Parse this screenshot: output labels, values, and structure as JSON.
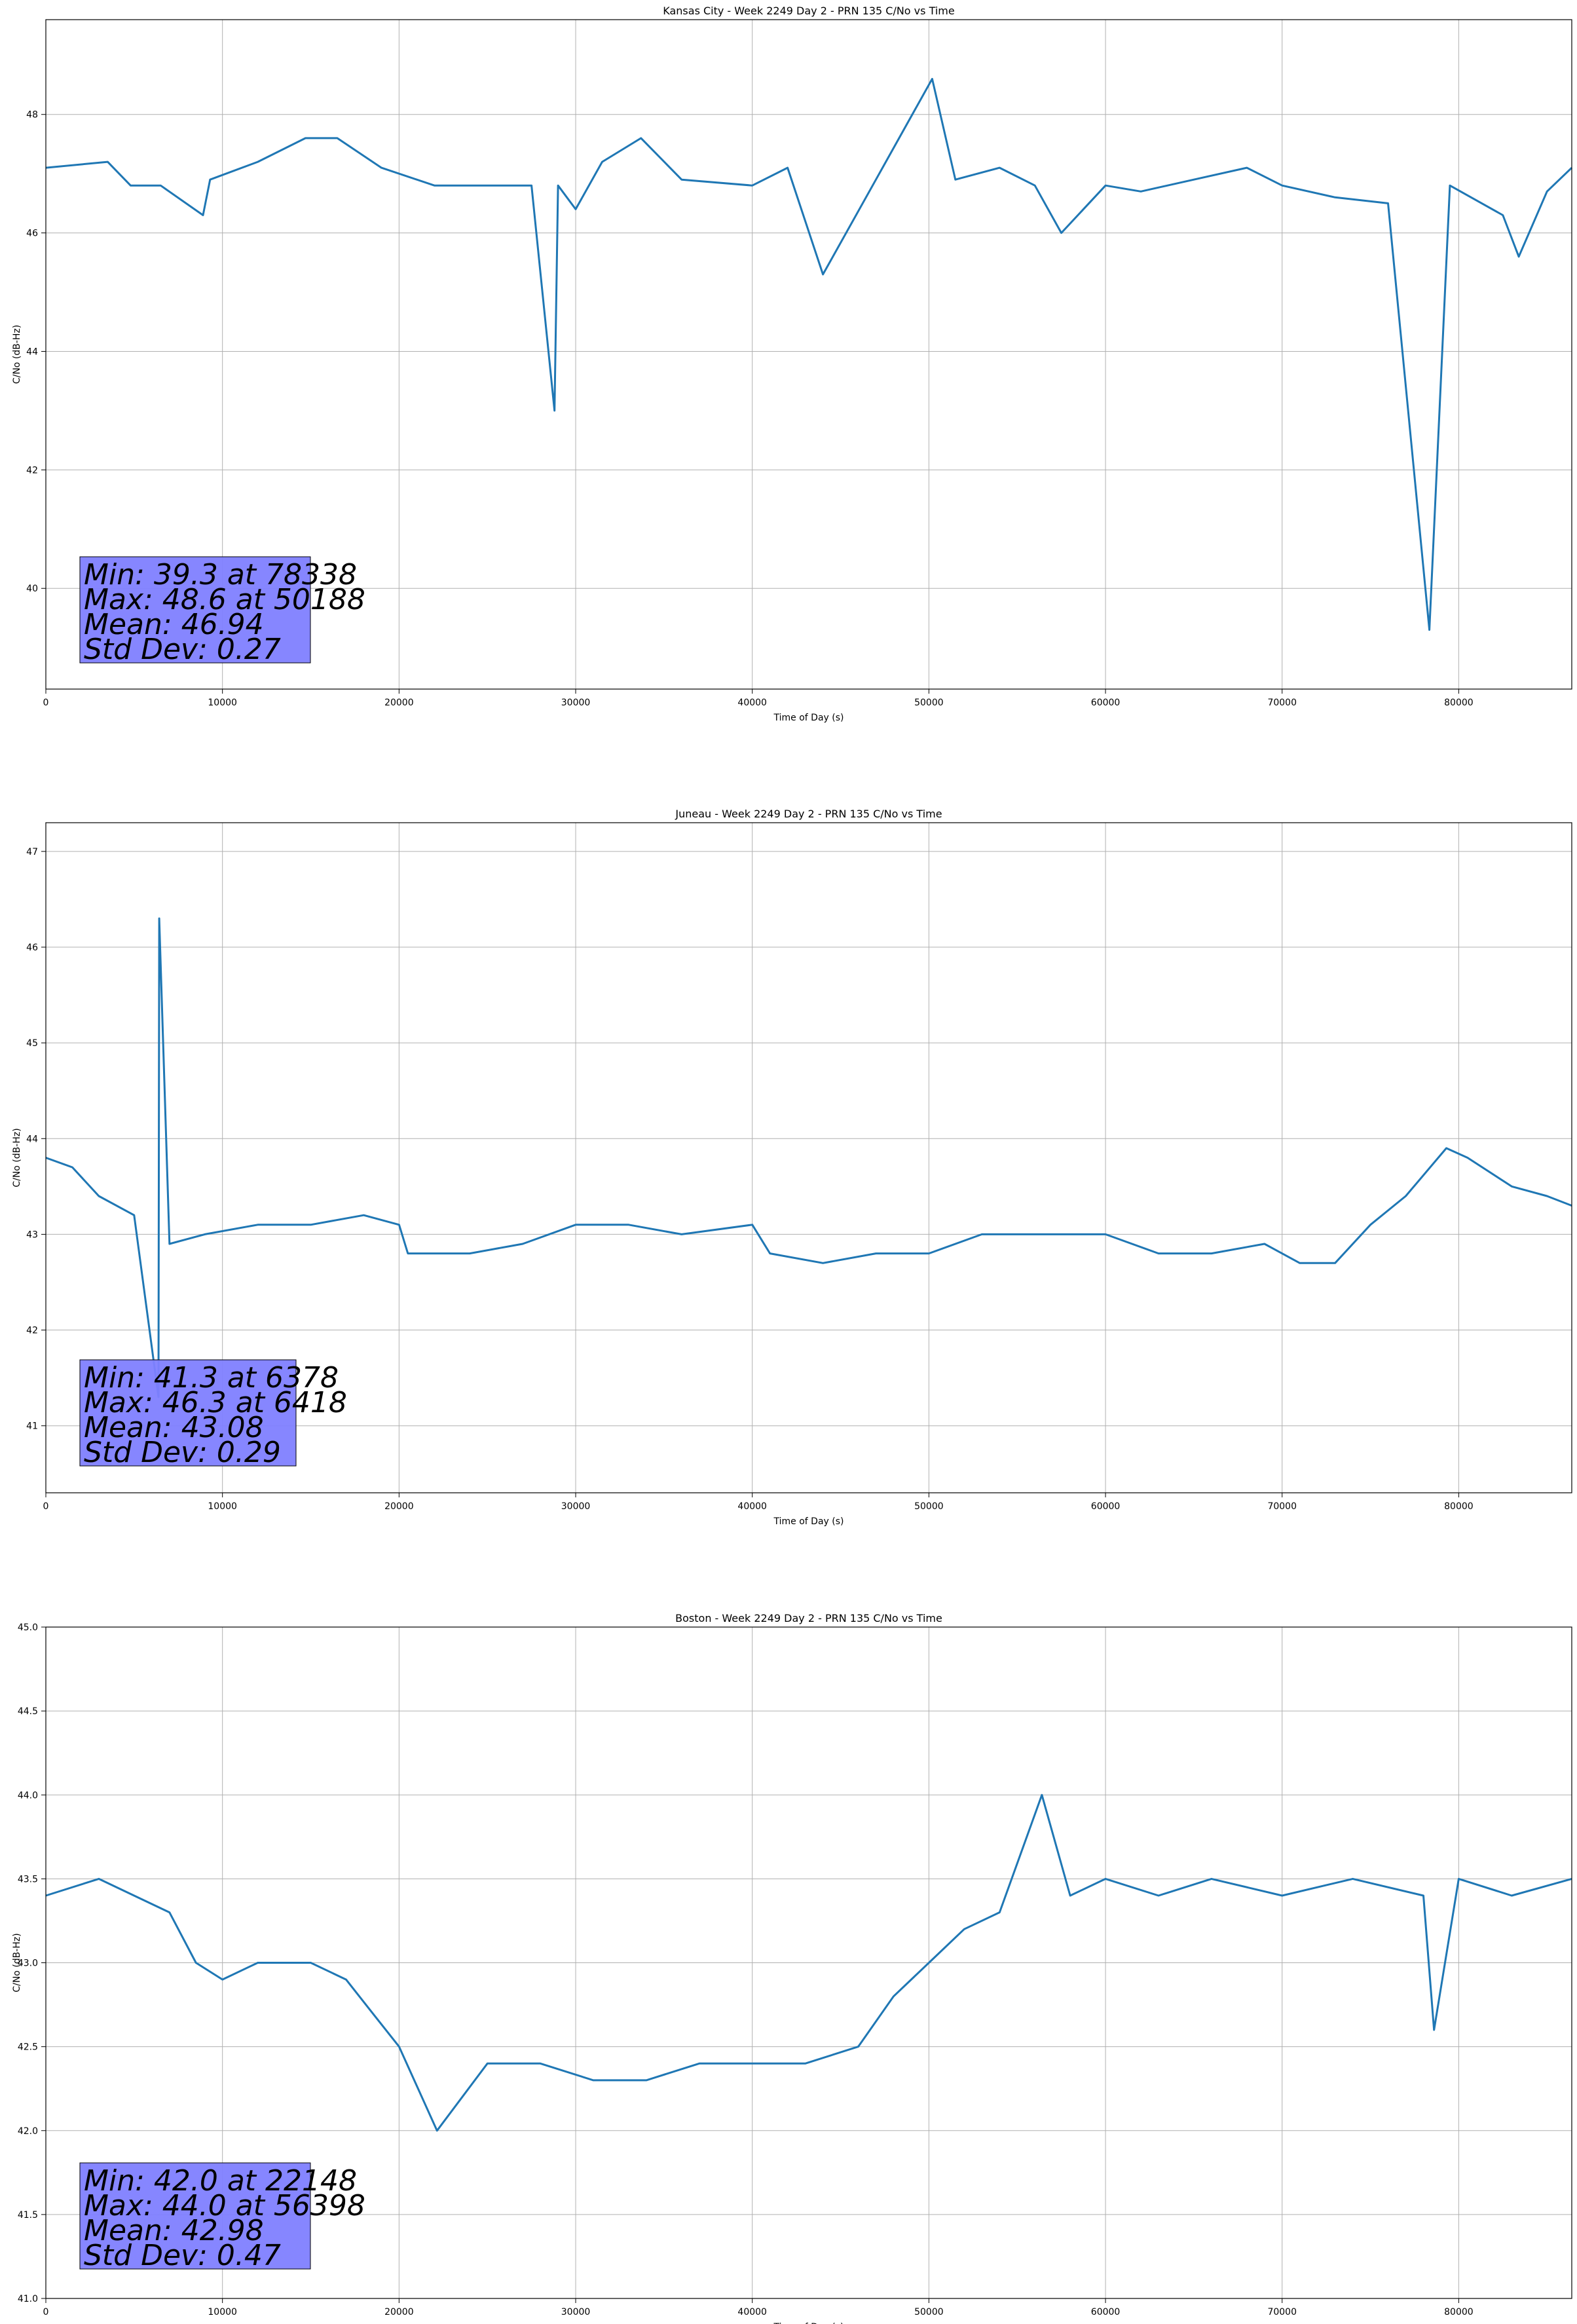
{
  "chart_data": [
    {
      "type": "line",
      "title": "Kansas City - Week 2249 Day 2 - PRN 135 C/No vs Time",
      "xlabel": "Time of Day (s)",
      "ylabel": "C/No (dB-Hz)",
      "xlim": [
        0,
        86400
      ],
      "ylim": [
        38.3,
        49.6
      ],
      "xticks": [
        0,
        10000,
        20000,
        30000,
        40000,
        50000,
        60000,
        70000,
        80000
      ],
      "xtick_labels": [
        "0",
        "10000",
        "20000",
        "30000",
        "40000",
        "50000",
        "60000",
        "70000",
        "80000"
      ],
      "yticks": [
        40,
        42,
        44,
        46,
        48
      ],
      "ytick_labels": [
        "40",
        "42",
        "44",
        "46",
        "48"
      ],
      "grid": true,
      "line_color": "#1f77b4",
      "stats": {
        "min_value": 39.3,
        "min_time": 78338,
        "max_value": 48.6,
        "max_time": 50188,
        "mean": 46.94,
        "std_dev": 0.27
      },
      "stats_text": [
        "Min: 39.3 at 78338",
        "Max: 48.6 at 50188",
        "Mean: 46.94",
        "Std Dev: 0.27"
      ],
      "series": [
        {
          "x": [
            0,
            3500,
            4800,
            6500,
            8900,
            9300,
            12000,
            14700,
            16500,
            19000,
            22000,
            25000,
            27500,
            28800,
            29000,
            30000,
            31500,
            33700,
            36000,
            40000,
            42000,
            44000,
            47000,
            50188,
            51500,
            54000,
            56000,
            57500,
            60000,
            62000,
            65000,
            68000,
            70000,
            73000,
            76000,
            78338,
            79500,
            82500,
            83400,
            85000,
            86400
          ],
          "y": [
            47.1,
            47.2,
            46.8,
            46.8,
            46.3,
            46.9,
            47.2,
            47.6,
            47.6,
            47.1,
            46.8,
            46.8,
            46.8,
            43.0,
            46.8,
            46.4,
            47.2,
            47.6,
            46.9,
            46.8,
            47.1,
            45.3,
            46.9,
            48.6,
            46.9,
            47.1,
            46.8,
            46.0,
            46.8,
            46.7,
            46.9,
            47.1,
            46.8,
            46.6,
            46.5,
            39.3,
            46.8,
            46.3,
            45.6,
            46.7,
            47.1
          ]
        }
      ]
    },
    {
      "type": "line",
      "title": "Juneau - Week 2249 Day 2 - PRN 135 C/No vs Time",
      "xlabel": "Time of Day (s)",
      "ylabel": "C/No (dB-Hz)",
      "xlim": [
        0,
        86400
      ],
      "ylim": [
        40.3,
        47.3
      ],
      "xticks": [
        0,
        10000,
        20000,
        30000,
        40000,
        50000,
        60000,
        70000,
        80000
      ],
      "xtick_labels": [
        "0",
        "10000",
        "20000",
        "30000",
        "40000",
        "50000",
        "60000",
        "70000",
        "80000"
      ],
      "yticks": [
        41,
        42,
        43,
        44,
        45,
        46,
        47
      ],
      "ytick_labels": [
        "41",
        "42",
        "43",
        "44",
        "45",
        "46",
        "47"
      ],
      "grid": true,
      "line_color": "#1f77b4",
      "stats": {
        "min_value": 41.3,
        "min_time": 6378,
        "max_value": 46.3,
        "max_time": 6418,
        "mean": 43.08,
        "std_dev": 0.29
      },
      "stats_text": [
        "Min: 41.3 at 6378",
        "Max: 46.3 at 6418",
        "Mean: 43.08",
        "Std Dev: 0.29"
      ],
      "series": [
        {
          "x": [
            0,
            1500,
            3000,
            5000,
            6378,
            6418,
            7000,
            9000,
            12000,
            15000,
            18000,
            20000,
            20500,
            24000,
            27000,
            30000,
            33000,
            36000,
            40000,
            41000,
            44000,
            47000,
            50000,
            53000,
            56000,
            60000,
            63000,
            66000,
            69000,
            71000,
            73000,
            75000,
            77000,
            79300,
            80500,
            83000,
            85000,
            86400
          ],
          "y": [
            43.8,
            43.7,
            43.4,
            43.2,
            41.3,
            46.3,
            42.9,
            43.0,
            43.1,
            43.1,
            43.2,
            43.1,
            42.8,
            42.8,
            42.9,
            43.1,
            43.1,
            43.0,
            43.1,
            42.8,
            42.7,
            42.8,
            42.8,
            43.0,
            43.0,
            43.0,
            42.8,
            42.8,
            42.9,
            42.7,
            42.7,
            43.1,
            43.4,
            43.9,
            43.8,
            43.5,
            43.4,
            43.3
          ]
        }
      ]
    },
    {
      "type": "line",
      "title": "Boston - Week 2249 Day 2 - PRN 135 C/No vs Time",
      "xlabel": "Time of Day (s)",
      "ylabel": "C/No (dB-Hz)",
      "xlim": [
        0,
        86400
      ],
      "ylim": [
        41.0,
        45.0
      ],
      "xticks": [
        0,
        10000,
        20000,
        30000,
        40000,
        50000,
        60000,
        70000,
        80000
      ],
      "xtick_labels": [
        "0",
        "10000",
        "20000",
        "30000",
        "40000",
        "50000",
        "60000",
        "70000",
        "80000"
      ],
      "yticks": [
        41.0,
        41.5,
        42.0,
        42.5,
        43.0,
        43.5,
        44.0,
        44.5,
        45.0
      ],
      "ytick_labels": [
        "41.0",
        "41.5",
        "42.0",
        "42.5",
        "43.0",
        "43.5",
        "44.0",
        "44.5",
        "45.0"
      ],
      "grid": true,
      "line_color": "#1f77b4",
      "stats": {
        "min_value": 42.0,
        "min_time": 22148,
        "max_value": 44.0,
        "max_time": 56398,
        "mean": 42.98,
        "std_dev": 0.47
      },
      "stats_text": [
        "Min: 42.0 at 22148",
        "Max: 44.0 at 56398",
        "Mean: 42.98",
        "Std Dev: 0.47"
      ],
      "series": [
        {
          "x": [
            0,
            3000,
            5000,
            7000,
            8500,
            10000,
            12000,
            15000,
            17000,
            18500,
            20000,
            22148,
            25000,
            28000,
            31000,
            34000,
            37000,
            40000,
            43000,
            46000,
            48000,
            50000,
            52000,
            54000,
            56398,
            58000,
            60000,
            63000,
            66000,
            70000,
            74000,
            78000,
            78600,
            80000,
            83000,
            86400
          ],
          "y": [
            43.4,
            43.5,
            43.4,
            43.3,
            43.0,
            42.9,
            43.0,
            43.0,
            42.9,
            42.7,
            42.5,
            42.0,
            42.4,
            42.4,
            42.3,
            42.3,
            42.4,
            42.4,
            42.4,
            42.5,
            42.8,
            43.0,
            43.2,
            43.3,
            44.0,
            43.4,
            43.5,
            43.4,
            43.5,
            43.4,
            43.5,
            43.4,
            42.6,
            43.5,
            43.4,
            43.5
          ]
        }
      ]
    }
  ]
}
